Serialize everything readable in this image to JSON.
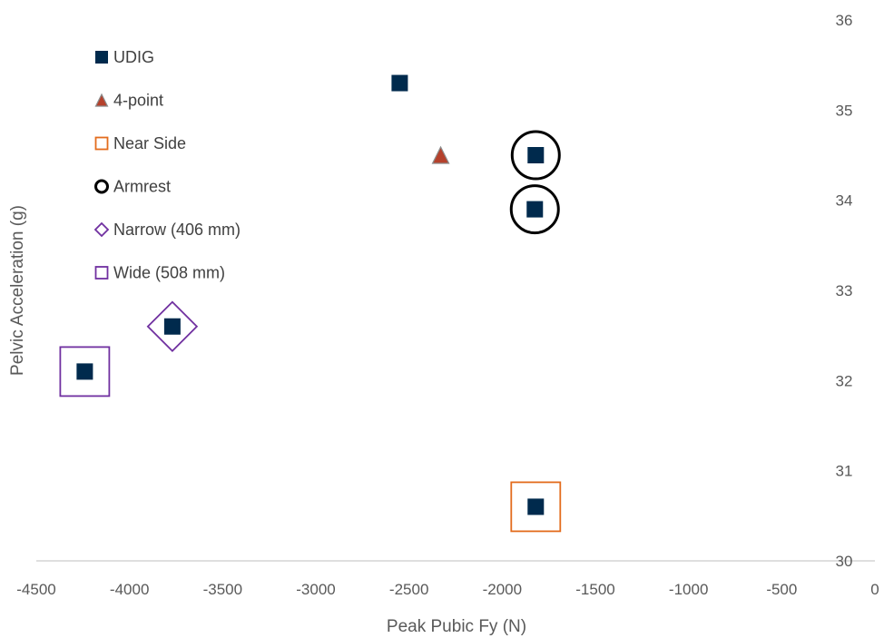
{
  "chart_data": {
    "type": "scatter",
    "title": "",
    "xlabel": "Peak Pubic Fy (N)",
    "ylabel": "Pelvic Acceleration (g)",
    "xlim": [
      -4500,
      0
    ],
    "ylim": [
      30,
      36
    ],
    "x_ticks": [
      "-4500",
      "-4000",
      "-3500",
      "-3000",
      "-2500",
      "-2000",
      "-1500",
      "-1000",
      "-500",
      "0"
    ],
    "y_ticks": [
      "30",
      "31",
      "32",
      "33",
      "34",
      "35",
      "36"
    ],
    "y_axis_side": "right",
    "grid": false,
    "legend_position": "top-left",
    "series": [
      {
        "name": "UDIG",
        "marker": "filled-square",
        "color": "#002a4d",
        "points": [
          [
            -2550,
            35.3
          ],
          [
            -1820,
            34.5
          ],
          [
            -1825,
            33.9
          ],
          [
            -3770,
            32.6
          ],
          [
            -4240,
            32.1
          ],
          [
            -1820,
            30.6
          ]
        ]
      },
      {
        "name": "4-point",
        "marker": "filled-triangle",
        "color": "#b5412c",
        "points": [
          [
            -2330,
            34.5
          ]
        ]
      },
      {
        "name": "Near Side",
        "marker": "open-square",
        "color": "#e36c1d",
        "points": [
          [
            -1820,
            30.6
          ]
        ]
      },
      {
        "name": "Armrest",
        "marker": "open-circle",
        "color": "#000000",
        "points": [
          [
            -1820,
            34.5
          ],
          [
            -1825,
            33.9
          ]
        ]
      },
      {
        "name": "Narrow (406 mm)",
        "marker": "open-diamond",
        "color": "#7030a0",
        "points": [
          [
            -3770,
            32.6
          ]
        ]
      },
      {
        "name": "Wide (508 mm)",
        "marker": "open-square",
        "color": "#7030a0",
        "points": [
          [
            -4240,
            32.1
          ]
        ]
      }
    ]
  }
}
